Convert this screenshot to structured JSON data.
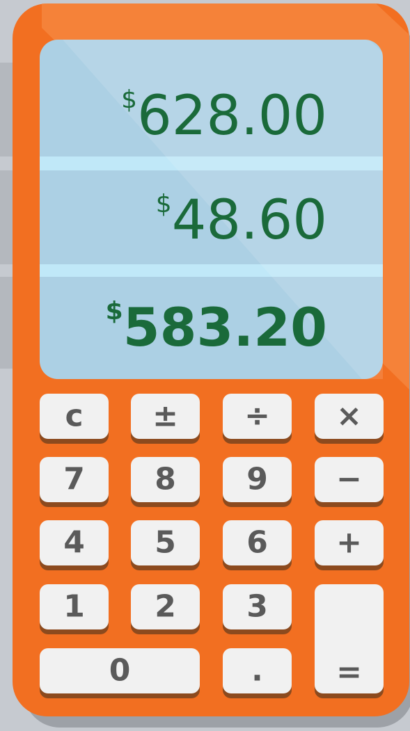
{
  "display": {
    "lines": [
      {
        "symbol": "$",
        "amount": "628.00"
      },
      {
        "symbol": "$",
        "amount": "48.60"
      },
      {
        "symbol": "$",
        "amount": "583.20"
      }
    ]
  },
  "keys": [
    "c",
    "±",
    "÷",
    "×",
    "7",
    "8",
    "9",
    "−",
    "4",
    "5",
    "6",
    "+",
    "1",
    "2",
    "3",
    "0",
    ".",
    "="
  ]
}
